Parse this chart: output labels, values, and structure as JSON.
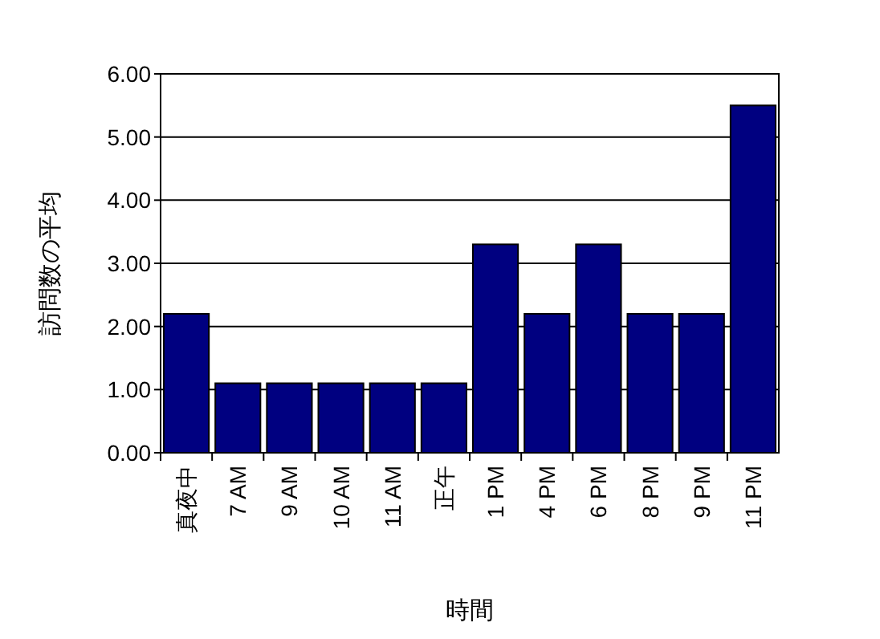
{
  "chart_data": {
    "type": "bar",
    "xlabel": "時間",
    "ylabel": "訪問数の平均",
    "categories": [
      "真夜中",
      "7 AM",
      "9 AM",
      "10 AM",
      "11 AM",
      "正午",
      "1 PM",
      "4 PM",
      "6 PM",
      "8 PM",
      "9 PM",
      "11 PM"
    ],
    "values": [
      2.2,
      1.1,
      1.1,
      1.1,
      1.1,
      1.1,
      3.3,
      2.2,
      3.3,
      2.2,
      2.2,
      5.5
    ],
    "color": "#000080",
    "ylim": [
      0,
      6
    ],
    "yticks": [
      {
        "value": 0,
        "label": "0.00"
      },
      {
        "value": 1,
        "label": "1.00"
      },
      {
        "value": 2,
        "label": "2.00"
      },
      {
        "value": 3,
        "label": "3.00"
      },
      {
        "value": 4,
        "label": "4.00"
      },
      {
        "value": 5,
        "label": "5.00"
      },
      {
        "value": 6,
        "label": "6.00"
      }
    ],
    "grid": "y"
  }
}
